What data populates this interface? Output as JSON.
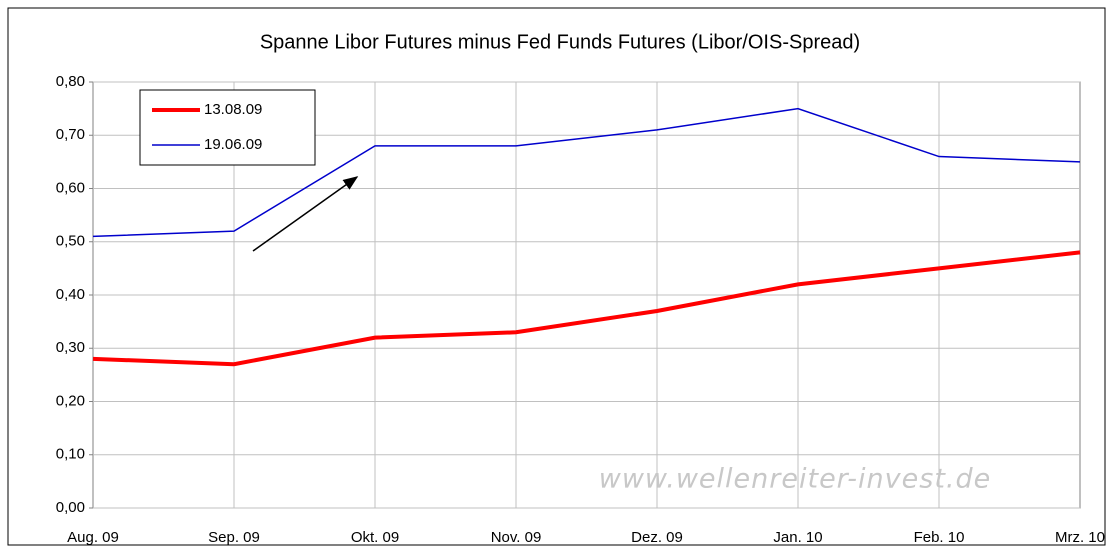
{
  "chart_data": {
    "type": "line",
    "title": "Spanne Libor Futures minus Fed Funds Futures (Libor/OIS-Spread)",
    "categories": [
      "Aug. 09",
      "Sep. 09",
      "Okt. 09",
      "Nov. 09",
      "Dez. 09",
      "Jan. 10",
      "Feb. 10",
      "Mrz. 10"
    ],
    "series": [
      {
        "name": "13.08.09",
        "color": "#ff0000",
        "values": [
          0.28,
          0.27,
          0.32,
          0.33,
          0.37,
          0.42,
          0.45,
          0.48
        ]
      },
      {
        "name": "19.06.09",
        "color": "#0000cc",
        "values": [
          0.51,
          0.52,
          0.68,
          0.68,
          0.71,
          0.75,
          0.66,
          0.65
        ]
      }
    ],
    "ylim": [
      0,
      0.8
    ],
    "yticks": [
      {
        "value": 0,
        "label": "0,00"
      },
      {
        "value": 0.1,
        "label": "0,10"
      },
      {
        "value": 0.2,
        "label": "0,20"
      },
      {
        "value": 0.3,
        "label": "0,30"
      },
      {
        "value": 0.4,
        "label": "0,40"
      },
      {
        "value": 0.5,
        "label": "0,50"
      },
      {
        "value": 0.6,
        "label": "0,60"
      },
      {
        "value": 0.7,
        "label": "0,70"
      },
      {
        "value": 0.8,
        "label": "0,80"
      }
    ],
    "grid": true,
    "legend": "upper left",
    "watermark": "www.wellenreiter-invest.de"
  }
}
